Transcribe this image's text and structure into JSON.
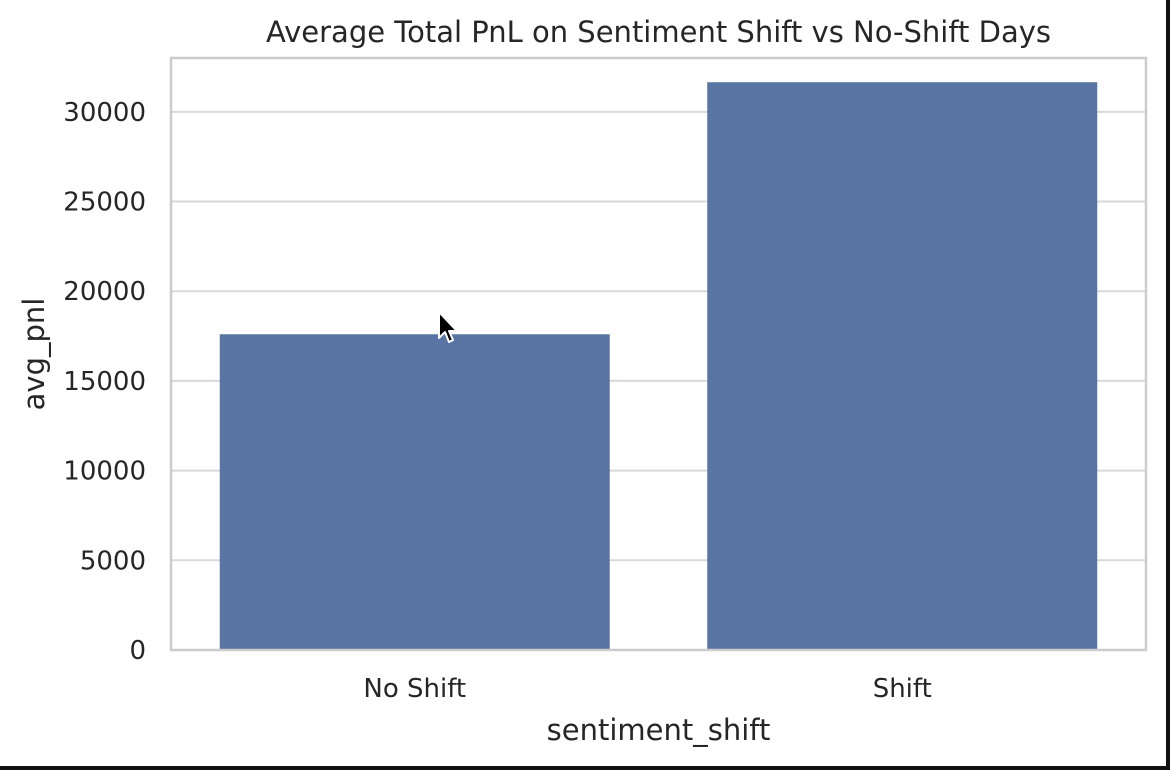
{
  "chart_data": {
    "type": "bar",
    "title": "Average Total PnL on Sentiment Shift vs No-Shift Days",
    "xlabel": "sentiment_shift",
    "ylabel": "avg_pnl",
    "categories": [
      "No Shift",
      "Shift"
    ],
    "values": [
      17600,
      31650
    ],
    "ylim": [
      0,
      33000
    ],
    "yticks": [
      0,
      5000,
      10000,
      15000,
      20000,
      25000,
      30000
    ],
    "grid": true,
    "bar_color": "#5875a4",
    "grid_color": "#d9d9d9",
    "spine_color": "#cccccc"
  },
  "cursor": {
    "icon": "mouse-pointer-icon"
  }
}
